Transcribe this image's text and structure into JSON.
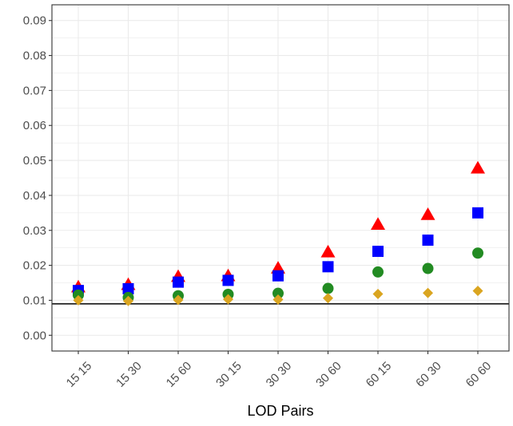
{
  "chart_data": {
    "type": "scatter",
    "title": "",
    "xlabel": "LOD Pairs",
    "ylabel": "",
    "categories": [
      "15 15",
      "15 30",
      "15 60",
      "30 15",
      "30 30",
      "30 60",
      "60 15",
      "60 30",
      "60 60"
    ],
    "ylim": [
      -0.0045,
      0.0945
    ],
    "y_ticks": [
      "0.00",
      "0.01",
      "0.02",
      "0.03",
      "0.04",
      "0.05",
      "0.06",
      "0.07",
      "0.08",
      "0.09"
    ],
    "y_tick_values": [
      0.0,
      0.01,
      0.02,
      0.03,
      0.04,
      0.05,
      0.06,
      0.07,
      0.08,
      0.09
    ],
    "grid": true,
    "reference_line": {
      "y": 0.009,
      "color": "#000000"
    },
    "series": [
      {
        "marker": "triangle",
        "color": "#ff0000",
        "values": [
          0.0138,
          0.0145,
          0.0168,
          0.017,
          0.0192,
          0.0238,
          0.0317,
          0.0345,
          0.0478
        ]
      },
      {
        "marker": "square",
        "color": "#0000ff",
        "values": [
          0.0128,
          0.0133,
          0.0152,
          0.0157,
          0.017,
          0.0196,
          0.024,
          0.0272,
          0.035
        ]
      },
      {
        "marker": "circle",
        "color": "#228b22",
        "values": [
          0.0115,
          0.0108,
          0.0113,
          0.0117,
          0.012,
          0.0134,
          0.0181,
          0.0191,
          0.0235
        ]
      },
      {
        "marker": "diamond",
        "color": "#daa520",
        "values": [
          0.01,
          0.0098,
          0.0101,
          0.0103,
          0.0102,
          0.0106,
          0.0118,
          0.0121,
          0.0127
        ]
      }
    ]
  }
}
